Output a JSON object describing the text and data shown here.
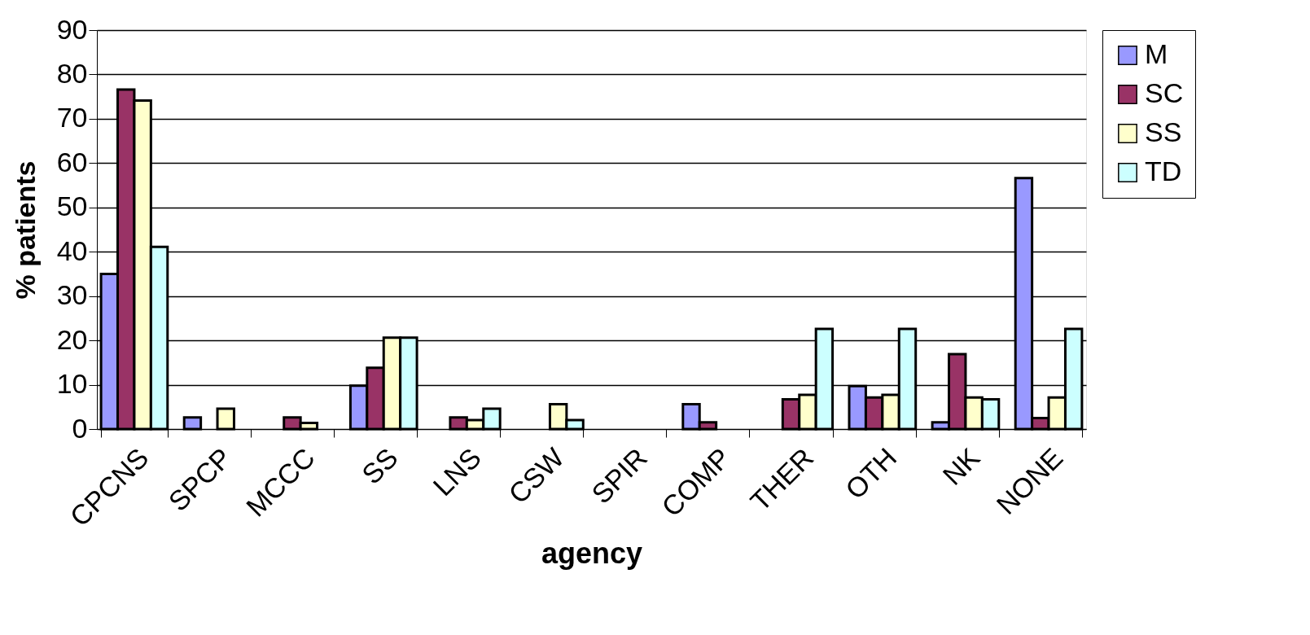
{
  "chart_data": {
    "type": "bar",
    "xlabel": "agency",
    "ylabel": "% patients",
    "categories": [
      "CPCNS",
      "SPCP",
      "MCCC",
      "SS",
      "LNS",
      "CSW",
      "SPIR",
      "COMP",
      "THER",
      "OTH",
      "NK",
      "NONE"
    ],
    "series": [
      {
        "name": "M",
        "color": "#9999ff",
        "values": [
          35,
          2.6,
          0,
          9.8,
          0,
          0,
          0,
          5.6,
          0,
          9.7,
          1.5,
          56.6
        ]
      },
      {
        "name": "SC",
        "color": "#993366",
        "values": [
          76.6,
          0,
          2.6,
          13.8,
          2.6,
          0,
          0,
          1.5,
          6.7,
          7.1,
          16.9,
          2.5
        ]
      },
      {
        "name": "SS",
        "color": "#ffffcc",
        "values": [
          74.1,
          4.6,
          1.4,
          20.6,
          2,
          5.6,
          0,
          0,
          7.7,
          7.7,
          7.1,
          7.1
        ]
      },
      {
        "name": "TD",
        "color": "#ccffff",
        "values": [
          41.1,
          0,
          0,
          20.6,
          4.6,
          2,
          0,
          0,
          22.6,
          22.6,
          6.7,
          22.6
        ]
      }
    ],
    "ylim": [
      0,
      90
    ],
    "yticks": [
      0,
      10,
      20,
      30,
      40,
      50,
      60,
      70,
      80,
      90
    ],
    "grid": "y",
    "legend": "right"
  }
}
